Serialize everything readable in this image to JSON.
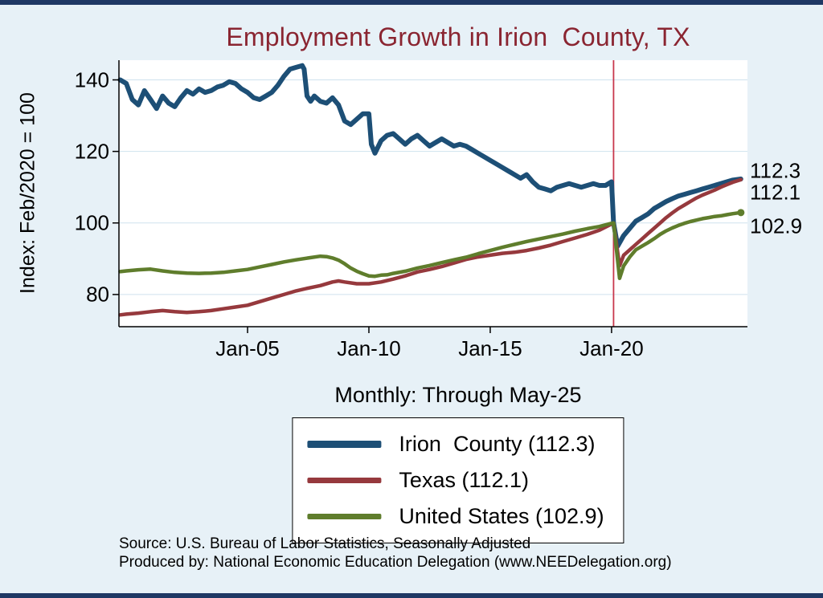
{
  "frame": {
    "border_color": "#1f3864",
    "background_color": "#e7f1f7"
  },
  "chart_data": {
    "type": "line",
    "title": "Employment Growth in Irion  County, TX",
    "title_color": "#8a2531",
    "ylabel": "Index: Feb/2020 = 100",
    "xlabel": "Monthly: Through May-25",
    "xlim": [
      1999.7,
      2025.6
    ],
    "ylim": [
      71,
      145.5
    ],
    "grid": true,
    "grid_color": "#cfe2ee",
    "y_ticks": [
      140,
      120,
      100,
      80
    ],
    "x_ticks": [
      {
        "value": 2005,
        "label": "Jan-05"
      },
      {
        "value": 2010,
        "label": "Jan-10"
      },
      {
        "value": 2015,
        "label": "Jan-15"
      },
      {
        "value": 2020,
        "label": "Jan-20"
      }
    ],
    "ref_line": {
      "x": 2020.083,
      "color": "#c8374d"
    },
    "end_labels": [
      "112.3",
      "112.1",
      "102.9"
    ],
    "legend_position": "bottom-center",
    "series": [
      {
        "name": "Irion County",
        "slug": "irion-county",
        "legend_label": "Irion  County (112.3)",
        "final_value": 112.3,
        "color": "#1d4f76",
        "line_width": 6,
        "points": [
          [
            1999.75,
            140
          ],
          [
            2000,
            139
          ],
          [
            2000.25,
            134.5
          ],
          [
            2000.5,
            133
          ],
          [
            2000.75,
            137
          ],
          [
            2001,
            134.5
          ],
          [
            2001.25,
            132
          ],
          [
            2001.5,
            135.5
          ],
          [
            2001.75,
            133.5
          ],
          [
            2002,
            132.5
          ],
          [
            2002.25,
            135
          ],
          [
            2002.5,
            137
          ],
          [
            2002.75,
            136
          ],
          [
            2003,
            137.5
          ],
          [
            2003.25,
            136.5
          ],
          [
            2003.5,
            137
          ],
          [
            2003.75,
            138
          ],
          [
            2004,
            138.5
          ],
          [
            2004.25,
            139.5
          ],
          [
            2004.5,
            139
          ],
          [
            2004.75,
            137.5
          ],
          [
            2005,
            136.5
          ],
          [
            2005.25,
            135
          ],
          [
            2005.5,
            134.5
          ],
          [
            2005.75,
            135.5
          ],
          [
            2006,
            136.5
          ],
          [
            2006.25,
            138.5
          ],
          [
            2006.5,
            141
          ],
          [
            2006.75,
            143
          ],
          [
            2007,
            143.5
          ],
          [
            2007.25,
            144
          ],
          [
            2007.33,
            143
          ],
          [
            2007.45,
            135.5
          ],
          [
            2007.6,
            134
          ],
          [
            2007.75,
            135.5
          ],
          [
            2008,
            134
          ],
          [
            2008.25,
            133.5
          ],
          [
            2008.5,
            135
          ],
          [
            2008.75,
            133
          ],
          [
            2009,
            128.5
          ],
          [
            2009.25,
            127.5
          ],
          [
            2009.5,
            129
          ],
          [
            2009.75,
            130.5
          ],
          [
            2010,
            130.5
          ],
          [
            2010.1,
            122
          ],
          [
            2010.25,
            119.5
          ],
          [
            2010.5,
            123
          ],
          [
            2010.75,
            124.5
          ],
          [
            2011,
            125
          ],
          [
            2011.25,
            123.5
          ],
          [
            2011.5,
            122
          ],
          [
            2011.75,
            123.5
          ],
          [
            2012,
            124.5
          ],
          [
            2012.25,
            123
          ],
          [
            2012.5,
            121.5
          ],
          [
            2012.75,
            122.5
          ],
          [
            2013,
            123.5
          ],
          [
            2013.25,
            122.5
          ],
          [
            2013.5,
            121.5
          ],
          [
            2013.75,
            122
          ],
          [
            2014,
            121.5
          ],
          [
            2014.25,
            120.5
          ],
          [
            2014.5,
            119.5
          ],
          [
            2014.75,
            118.5
          ],
          [
            2015,
            117.5
          ],
          [
            2015.25,
            116.5
          ],
          [
            2015.5,
            115.5
          ],
          [
            2015.75,
            114.5
          ],
          [
            2016,
            113.5
          ],
          [
            2016.25,
            112.5
          ],
          [
            2016.5,
            113.5
          ],
          [
            2016.75,
            111.5
          ],
          [
            2017,
            110
          ],
          [
            2017.25,
            109.5
          ],
          [
            2017.5,
            109
          ],
          [
            2017.75,
            110
          ],
          [
            2018,
            110.5
          ],
          [
            2018.25,
            111
          ],
          [
            2018.5,
            110.5
          ],
          [
            2018.75,
            110
          ],
          [
            2019,
            110.5
          ],
          [
            2019.25,
            111
          ],
          [
            2019.5,
            110.5
          ],
          [
            2019.75,
            110.5
          ],
          [
            2020,
            111.5
          ],
          [
            2020.083,
            100
          ],
          [
            2020.25,
            93.5
          ],
          [
            2020.5,
            96.5
          ],
          [
            2020.75,
            98.5
          ],
          [
            2021,
            100.5
          ],
          [
            2021.25,
            101.5
          ],
          [
            2021.5,
            102.5
          ],
          [
            2021.75,
            104
          ],
          [
            2022,
            105
          ],
          [
            2022.25,
            106
          ],
          [
            2022.5,
            106.8
          ],
          [
            2022.75,
            107.5
          ],
          [
            2023,
            108
          ],
          [
            2023.25,
            108.5
          ],
          [
            2023.5,
            109
          ],
          [
            2023.75,
            109.5
          ],
          [
            2024,
            110
          ],
          [
            2024.25,
            110.5
          ],
          [
            2024.5,
            111
          ],
          [
            2024.75,
            111.5
          ],
          [
            2025,
            112
          ],
          [
            2025.33,
            112.3
          ]
        ]
      },
      {
        "name": "Texas",
        "slug": "texas",
        "legend_label": "Texas (112.1)",
        "final_value": 112.1,
        "color": "#96393d",
        "line_width": 4.5,
        "points": [
          [
            1999.75,
            74.3
          ],
          [
            2000,
            74.5
          ],
          [
            2000.5,
            74.8
          ],
          [
            2001,
            75.2
          ],
          [
            2001.5,
            75.5
          ],
          [
            2002,
            75.2
          ],
          [
            2002.5,
            75
          ],
          [
            2003,
            75.2
          ],
          [
            2003.5,
            75.5
          ],
          [
            2004,
            76
          ],
          [
            2004.5,
            76.5
          ],
          [
            2005,
            77
          ],
          [
            2005.5,
            78
          ],
          [
            2006,
            79
          ],
          [
            2006.5,
            80
          ],
          [
            2007,
            81
          ],
          [
            2007.5,
            81.8
          ],
          [
            2008,
            82.5
          ],
          [
            2008.5,
            83.5
          ],
          [
            2008.75,
            83.8
          ],
          [
            2009,
            83.5
          ],
          [
            2009.5,
            83
          ],
          [
            2010,
            83
          ],
          [
            2010.5,
            83.5
          ],
          [
            2011,
            84.3
          ],
          [
            2011.5,
            85.2
          ],
          [
            2012,
            86.3
          ],
          [
            2012.5,
            87
          ],
          [
            2013,
            87.8
          ],
          [
            2013.5,
            88.8
          ],
          [
            2014,
            89.8
          ],
          [
            2014.5,
            90.5
          ],
          [
            2015,
            91
          ],
          [
            2015.5,
            91.5
          ],
          [
            2016,
            91.8
          ],
          [
            2016.5,
            92.3
          ],
          [
            2017,
            93
          ],
          [
            2017.5,
            93.8
          ],
          [
            2018,
            94.8
          ],
          [
            2018.5,
            95.8
          ],
          [
            2019,
            96.8
          ],
          [
            2019.5,
            98
          ],
          [
            2020,
            99.7
          ],
          [
            2020.083,
            100
          ],
          [
            2020.33,
            88
          ],
          [
            2020.5,
            91
          ],
          [
            2020.75,
            92.5
          ],
          [
            2021,
            94
          ],
          [
            2021.25,
            95.5
          ],
          [
            2021.5,
            97
          ],
          [
            2021.75,
            98.5
          ],
          [
            2022,
            100
          ],
          [
            2022.25,
            101.5
          ],
          [
            2022.5,
            102.8
          ],
          [
            2022.75,
            104
          ],
          [
            2023,
            105
          ],
          [
            2023.25,
            106
          ],
          [
            2023.5,
            107
          ],
          [
            2023.75,
            107.8
          ],
          [
            2024,
            108.5
          ],
          [
            2024.25,
            109.2
          ],
          [
            2024.5,
            110
          ],
          [
            2024.75,
            110.7
          ],
          [
            2025,
            111.4
          ],
          [
            2025.33,
            112.1
          ]
        ]
      },
      {
        "name": "United States",
        "slug": "united-states",
        "legend_label": "United States (102.9)",
        "final_value": 102.9,
        "color": "#5f7d2c",
        "line_width": 4.5,
        "end_marker": true,
        "points": [
          [
            1999.75,
            86.4
          ],
          [
            2000,
            86.6
          ],
          [
            2000.5,
            86.9
          ],
          [
            2001,
            87.1
          ],
          [
            2001.5,
            86.6
          ],
          [
            2002,
            86.2
          ],
          [
            2002.5,
            86
          ],
          [
            2003,
            85.9
          ],
          [
            2003.5,
            86
          ],
          [
            2004,
            86.2
          ],
          [
            2004.5,
            86.6
          ],
          [
            2005,
            87
          ],
          [
            2005.5,
            87.7
          ],
          [
            2006,
            88.4
          ],
          [
            2006.5,
            89.1
          ],
          [
            2007,
            89.7
          ],
          [
            2007.5,
            90.2
          ],
          [
            2008,
            90.7
          ],
          [
            2008.25,
            90.6
          ],
          [
            2008.5,
            90.2
          ],
          [
            2008.75,
            89.6
          ],
          [
            2009,
            88.6
          ],
          [
            2009.25,
            87.4
          ],
          [
            2009.5,
            86.5
          ],
          [
            2009.75,
            85.8
          ],
          [
            2010,
            85.2
          ],
          [
            2010.25,
            85.1
          ],
          [
            2010.5,
            85.4
          ],
          [
            2010.75,
            85.5
          ],
          [
            2011,
            85.9
          ],
          [
            2011.5,
            86.5
          ],
          [
            2012,
            87.4
          ],
          [
            2012.5,
            88.1
          ],
          [
            2013,
            88.9
          ],
          [
            2013.5,
            89.7
          ],
          [
            2014,
            90.4
          ],
          [
            2014.5,
            91.4
          ],
          [
            2015,
            92.3
          ],
          [
            2015.5,
            93.2
          ],
          [
            2016,
            94
          ],
          [
            2016.5,
            94.8
          ],
          [
            2017,
            95.5
          ],
          [
            2017.5,
            96.2
          ],
          [
            2018,
            96.9
          ],
          [
            2018.5,
            97.7
          ],
          [
            2019,
            98.4
          ],
          [
            2019.5,
            99
          ],
          [
            2020,
            99.9
          ],
          [
            2020.083,
            100
          ],
          [
            2020.33,
            84.5
          ],
          [
            2020.5,
            88
          ],
          [
            2020.75,
            90.5
          ],
          [
            2021,
            92.5
          ],
          [
            2021.25,
            93.5
          ],
          [
            2021.5,
            94.5
          ],
          [
            2021.75,
            95.6
          ],
          [
            2022,
            96.8
          ],
          [
            2022.25,
            97.8
          ],
          [
            2022.5,
            98.6
          ],
          [
            2022.75,
            99.3
          ],
          [
            2023,
            99.9
          ],
          [
            2023.25,
            100.4
          ],
          [
            2023.5,
            100.8
          ],
          [
            2023.75,
            101.2
          ],
          [
            2024,
            101.5
          ],
          [
            2024.25,
            101.8
          ],
          [
            2024.5,
            102
          ],
          [
            2024.75,
            102.3
          ],
          [
            2025,
            102.6
          ],
          [
            2025.33,
            102.9
          ]
        ]
      }
    ]
  },
  "footer": {
    "line1": "Source: U.S. Bureau of Labor Statistics, Seasonally Adjusted",
    "line2": "Produced by: National Economic Education Delegation (www.NEEDelegation.org)"
  }
}
